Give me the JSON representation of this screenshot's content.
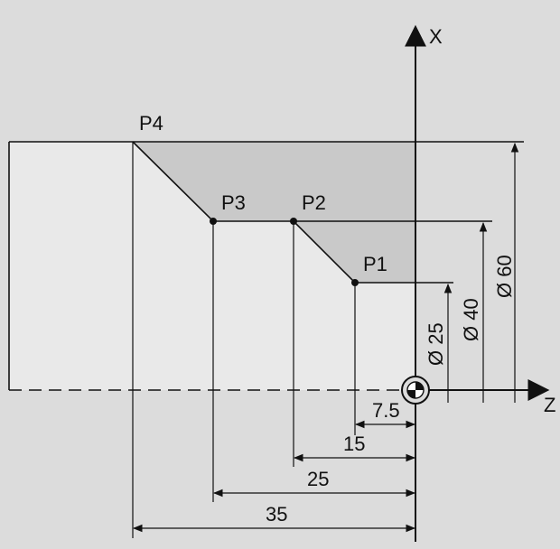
{
  "axes": {
    "x_label": "X",
    "z_label": "Z"
  },
  "points": [
    {
      "name": "P1",
      "z": -7.5,
      "x_diameter": 25
    },
    {
      "name": "P2",
      "z": -15,
      "x_diameter": 40
    },
    {
      "name": "P3",
      "z": -25,
      "x_diameter": 40
    },
    {
      "name": "P4",
      "z": -35,
      "x_diameter": 60
    }
  ],
  "dimensions": {
    "z": [
      "7.5",
      "15",
      "25",
      "35"
    ],
    "diameter": [
      "Ø 25",
      "Ø 40",
      "Ø 60"
    ]
  },
  "colors": {
    "background": "#dcdcdc",
    "workpiece": "#e9e9e9",
    "removed_material": "#c9c9c9",
    "line": "#111111"
  }
}
